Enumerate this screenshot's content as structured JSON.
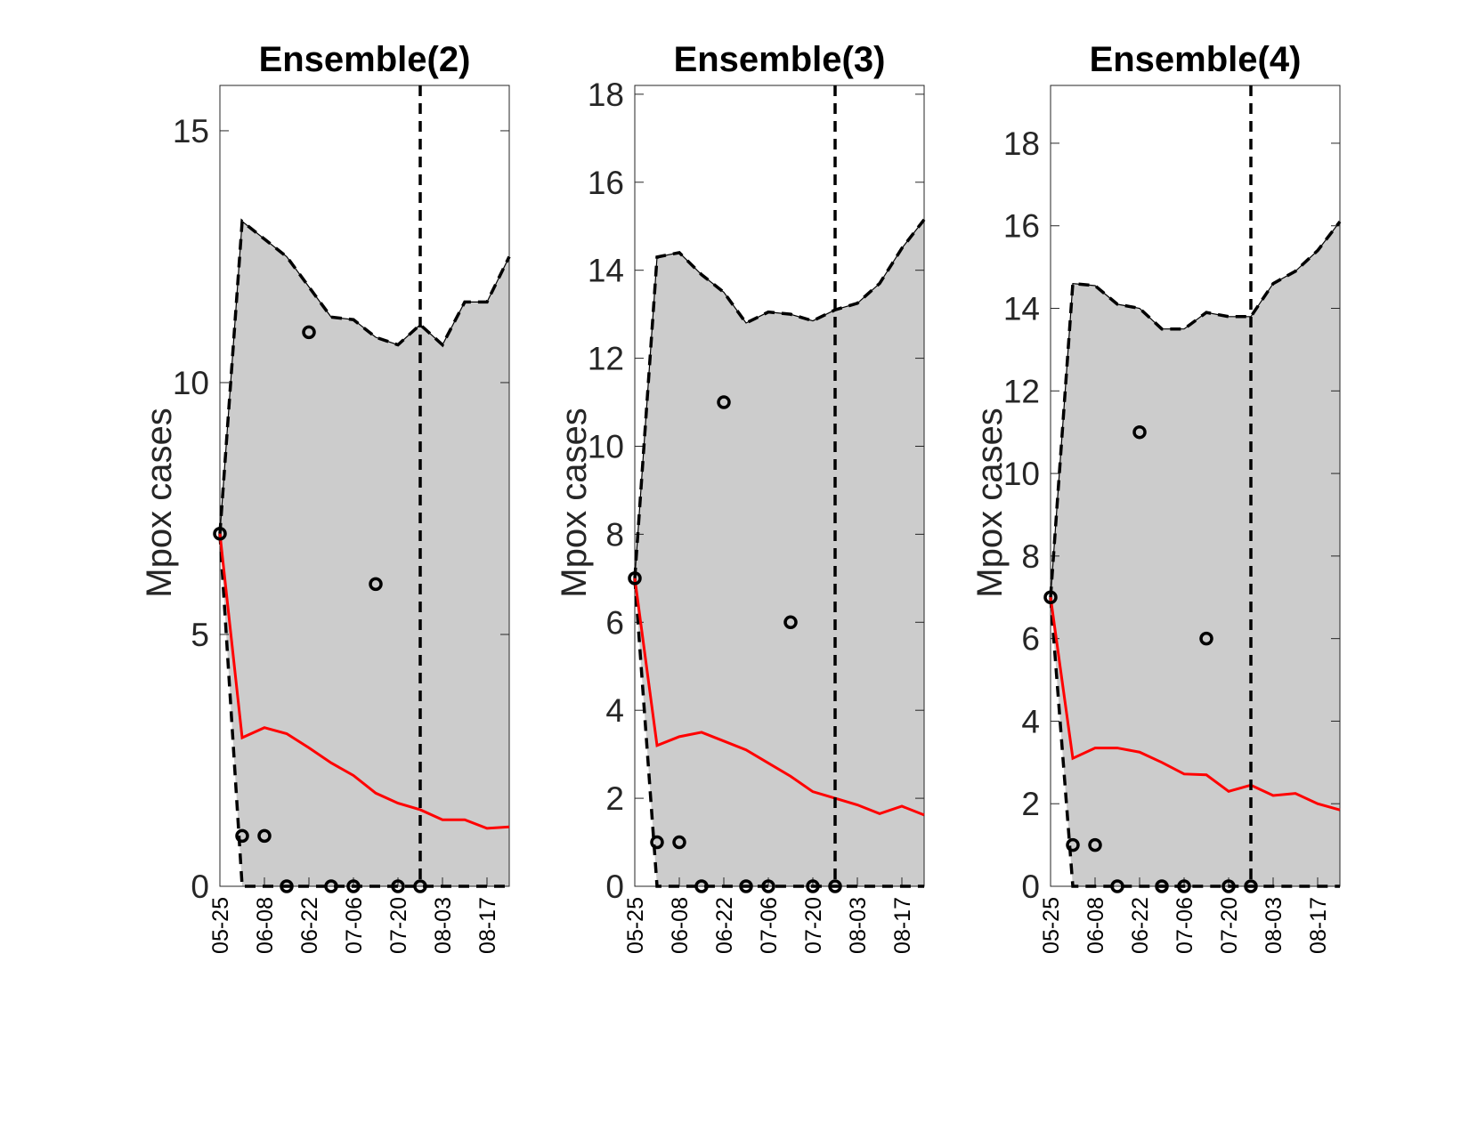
{
  "colors": {
    "band_fill": "#cccccc",
    "bound_line": "#000000",
    "median_line": "#ff0000",
    "observed_marker": "#000000",
    "axis": "#262626"
  },
  "chart_data": [
    {
      "type": "line",
      "title": "Ensemble(2)",
      "ylabel": "Mpox cases",
      "xlabel": "",
      "x_tick_labels": [
        "05-25",
        "06-08",
        "06-22",
        "07-06",
        "07-20",
        "08-03",
        "08-17"
      ],
      "y_ticks": [
        0,
        5,
        10,
        15
      ],
      "ylim": [
        0,
        15.9
      ],
      "xlim": [
        0,
        13
      ],
      "forecast_start": 9,
      "grid": false,
      "x": [
        "05-25",
        "06-01",
        "06-08",
        "06-15",
        "06-22",
        "06-29",
        "07-06",
        "07-13",
        "07-20",
        "07-27",
        "08-03",
        "08-10",
        "08-17",
        "08-24"
      ],
      "series": [
        {
          "role": "upper",
          "values": [
            7.0,
            13.2,
            12.85,
            12.5,
            11.9,
            11.3,
            11.25,
            10.9,
            10.75,
            11.15,
            10.75,
            11.6,
            11.6,
            12.5
          ]
        },
        {
          "role": "median",
          "values": [
            7.0,
            2.95,
            3.15,
            3.03,
            2.75,
            2.45,
            2.2,
            1.85,
            1.65,
            1.52,
            1.32,
            1.32,
            1.15,
            1.18
          ]
        },
        {
          "role": "lower",
          "values": [
            7.0,
            0,
            0,
            0,
            0,
            0,
            0,
            0,
            0,
            0,
            0,
            0,
            0,
            0
          ]
        },
        {
          "role": "observed",
          "x": [
            0,
            1,
            2,
            3,
            4,
            5,
            6,
            7,
            8,
            9
          ],
          "values": [
            7,
            1,
            1,
            0,
            11,
            0,
            0,
            6,
            0,
            0
          ]
        }
      ]
    },
    {
      "type": "line",
      "title": "Ensemble(3)",
      "ylabel": "Mpox cases",
      "xlabel": "",
      "x_tick_labels": [
        "05-25",
        "06-08",
        "06-22",
        "07-06",
        "07-20",
        "08-03",
        "08-17"
      ],
      "y_ticks": [
        0,
        2,
        4,
        6,
        8,
        10,
        12,
        14,
        16,
        18
      ],
      "ylim": [
        0,
        18.2
      ],
      "xlim": [
        0,
        13
      ],
      "forecast_start": 9,
      "grid": false,
      "x": [
        "05-25",
        "06-01",
        "06-08",
        "06-15",
        "06-22",
        "06-29",
        "07-06",
        "07-13",
        "07-20",
        "07-27",
        "08-03",
        "08-10",
        "08-17",
        "08-24"
      ],
      "series": [
        {
          "role": "upper",
          "values": [
            7.0,
            14.3,
            14.4,
            13.9,
            13.5,
            12.8,
            13.05,
            13.0,
            12.85,
            13.1,
            13.25,
            13.7,
            14.5,
            15.15
          ]
        },
        {
          "role": "median",
          "values": [
            7.0,
            3.2,
            3.4,
            3.5,
            3.3,
            3.1,
            2.8,
            2.5,
            2.15,
            2.0,
            1.85,
            1.65,
            1.82,
            1.62
          ]
        },
        {
          "role": "lower",
          "values": [
            7.0,
            0,
            0,
            0,
            0,
            0,
            0,
            0,
            0,
            0,
            0,
            0,
            0,
            0
          ]
        },
        {
          "role": "observed",
          "x": [
            0,
            1,
            2,
            3,
            4,
            5,
            6,
            7,
            8,
            9
          ],
          "values": [
            7,
            1,
            1,
            0,
            11,
            0,
            0,
            6,
            0,
            0
          ]
        }
      ]
    },
    {
      "type": "line",
      "title": "Ensemble(4)",
      "ylabel": "Mpox cases",
      "xlabel": "",
      "x_tick_labels": [
        "05-25",
        "06-08",
        "06-22",
        "07-06",
        "07-20",
        "08-03",
        "08-17"
      ],
      "y_ticks": [
        0,
        2,
        4,
        6,
        8,
        10,
        12,
        14,
        16,
        18
      ],
      "ylim": [
        0,
        19.4
      ],
      "xlim": [
        0,
        13
      ],
      "forecast_start": 9,
      "grid": false,
      "x": [
        "05-25",
        "06-01",
        "06-08",
        "06-15",
        "06-22",
        "06-29",
        "07-06",
        "07-13",
        "07-20",
        "07-27",
        "08-03",
        "08-10",
        "08-17",
        "08-24"
      ],
      "series": [
        {
          "role": "upper",
          "values": [
            7.0,
            14.6,
            14.55,
            14.1,
            14.0,
            13.5,
            13.5,
            13.9,
            13.8,
            13.8,
            14.6,
            14.9,
            15.4,
            16.1
          ]
        },
        {
          "role": "median",
          "values": [
            7.0,
            3.1,
            3.35,
            3.35,
            3.25,
            3.0,
            2.72,
            2.7,
            2.3,
            2.45,
            2.2,
            2.25,
            2.0,
            1.85
          ]
        },
        {
          "role": "lower",
          "values": [
            7.0,
            0,
            0,
            0,
            0,
            0,
            0,
            0,
            0,
            0,
            0,
            0,
            0,
            0
          ]
        },
        {
          "role": "observed",
          "x": [
            0,
            1,
            2,
            3,
            4,
            5,
            6,
            7,
            8,
            9
          ],
          "values": [
            7,
            1,
            1,
            0,
            11,
            0,
            0,
            6,
            0,
            0
          ]
        }
      ]
    }
  ]
}
